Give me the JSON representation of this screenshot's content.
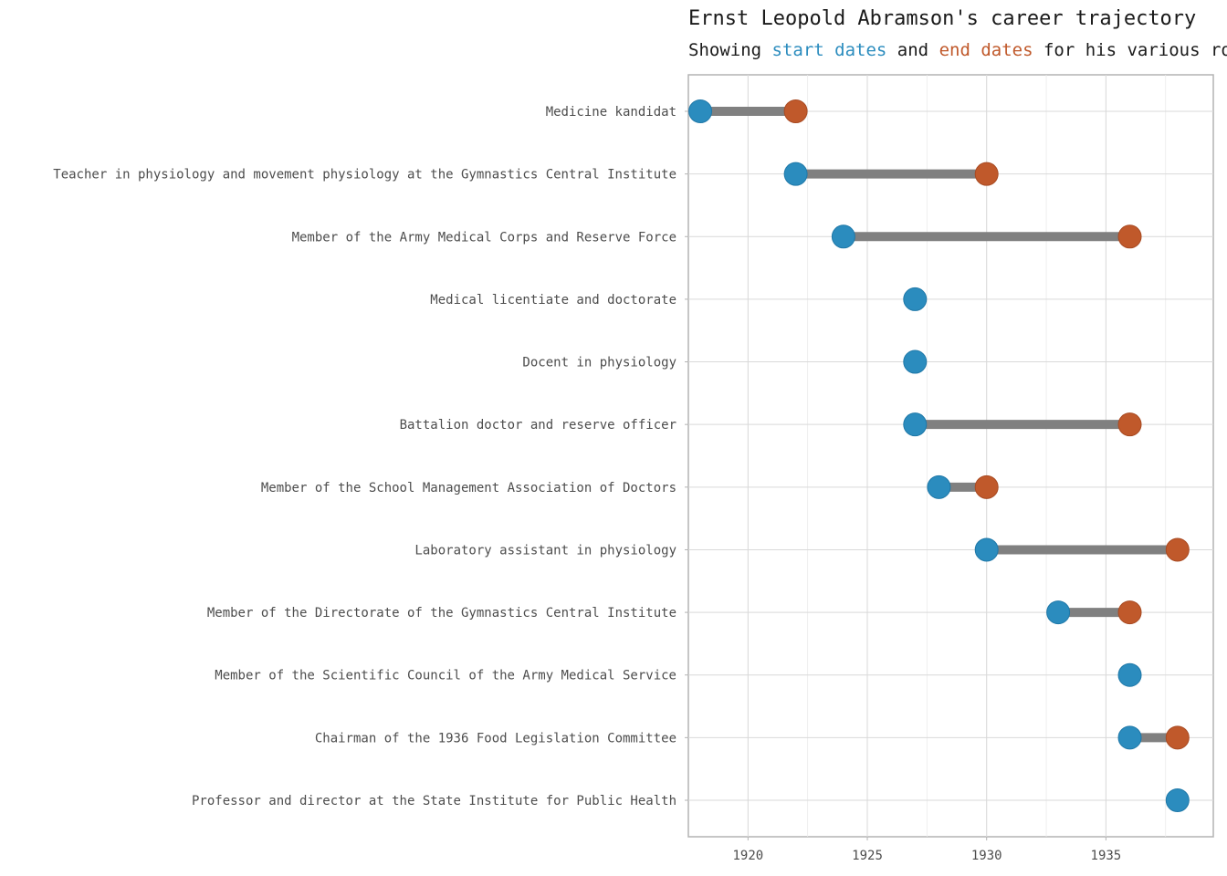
{
  "chart_data": {
    "type": "dumbbell",
    "title": "Ernst Leopold Abramson's career trajectory",
    "subtitle": {
      "prefix": "Showing ",
      "start_label": "start dates",
      "middle": " and ",
      "end_label": "end dates",
      "suffix": " for his various roles"
    },
    "colors": {
      "start": "#2b8cbe",
      "end": "#c0592b",
      "segment": "#808080"
    },
    "xlim": [
      1917.5,
      1939.5
    ],
    "xticks": [
      "1920",
      "1925",
      "1930",
      "1935"
    ],
    "grid": true,
    "categories": [
      "Medicine kandidat",
      "Teacher in physiology and movement physiology at the Gymnastics Central Institute",
      "Member of the Army Medical Corps and Reserve Force",
      "Medical licentiate and doctorate",
      "Docent in physiology",
      "Battalion doctor and reserve officer",
      "Member of the School Management Association of Doctors",
      "Laboratory assistant in physiology",
      "Member of the Directorate of the Gymnastics Central Institute",
      "Member of the Scientific Council of the Army Medical Service",
      "Chairman of the 1936 Food Legislation Committee",
      "Professor and director at the State Institute for Public Health"
    ],
    "series": [
      {
        "name": "start dates",
        "values": [
          1918,
          1922,
          1924,
          1927,
          1927,
          1927,
          1928,
          1930,
          1933,
          1936,
          1936,
          1938
        ]
      },
      {
        "name": "end dates",
        "values": [
          1922,
          1930,
          1936,
          null,
          null,
          1936,
          1930,
          1938,
          1936,
          null,
          1938,
          null
        ]
      }
    ]
  }
}
